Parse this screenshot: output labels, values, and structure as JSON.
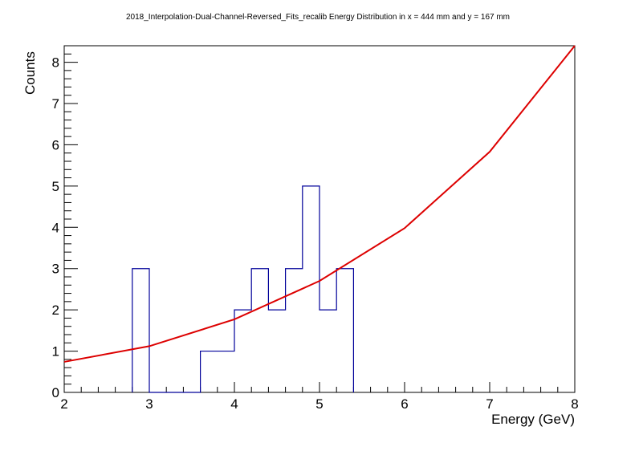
{
  "chart_data": {
    "type": "histogram",
    "title": "2018_Interpolation-Dual-Channel-Reversed_Fits_recalib Energy Distribution in x = 444 mm and y = 167 mm",
    "xlabel": "Energy (GeV)",
    "ylabel": "Counts",
    "xlim": [
      2,
      8
    ],
    "ylim": [
      0,
      8.4
    ],
    "x_ticks": [
      "2",
      "3",
      "4",
      "5",
      "6",
      "7",
      "8"
    ],
    "y_ticks": [
      "0",
      "1",
      "2",
      "3",
      "4",
      "5",
      "6",
      "7",
      "8"
    ],
    "histogram": {
      "bin_edges": [
        2.8,
        3.0,
        3.2,
        3.4,
        3.6,
        3.8,
        4.0,
        4.2,
        4.4,
        4.6,
        4.8,
        5.0,
        5.2,
        5.4
      ],
      "counts": [
        3,
        0,
        0,
        0,
        1,
        1,
        2,
        3,
        2,
        3,
        5,
        2,
        3
      ],
      "color": "#000099"
    },
    "fit": {
      "type": "exponential",
      "x": [
        2.0,
        3.0,
        4.0,
        5.0,
        6.0,
        7.0,
        8.0
      ],
      "y": [
        0.74,
        1.12,
        1.77,
        2.7,
        3.98,
        5.83,
        8.4
      ],
      "color": "#dd0000"
    }
  }
}
